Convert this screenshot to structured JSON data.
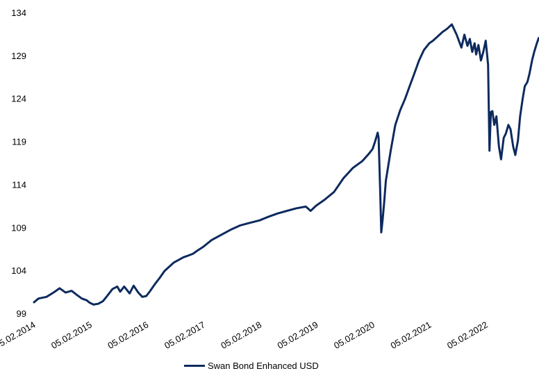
{
  "chart_data": {
    "type": "line",
    "title": "",
    "xlabel": "",
    "ylabel": "",
    "ylim": [
      99,
      134
    ],
    "y_ticks": [
      99,
      104,
      109,
      114,
      119,
      124,
      129,
      134
    ],
    "y_tick_labels": [
      "99",
      "104",
      "109",
      "114",
      "119",
      "124",
      "129",
      "134"
    ],
    "x_tick_labels": [
      "05.02.2014",
      "05.02.2015",
      "05.02.2016",
      "05.02.2017",
      "05.02.2018",
      "05.02.2019",
      "05.02.2020",
      "05.02.2021",
      "05.02.2022"
    ],
    "xlim": [
      "2014-02-05",
      "2023-01-15"
    ],
    "grid": false,
    "legend_position": "bottom",
    "colors": {
      "series": "#0d2a5e"
    },
    "series": [
      {
        "name": "Swan Bond Enhanced USD",
        "x": [
          "2014-02-05",
          "2014-03-10",
          "2014-05-01",
          "2014-06-15",
          "2014-07-25",
          "2014-09-01",
          "2014-10-10",
          "2014-11-15",
          "2014-12-15",
          "2015-01-15",
          "2015-02-05",
          "2015-03-01",
          "2015-04-01",
          "2015-05-01",
          "2015-06-01",
          "2015-07-01",
          "2015-08-01",
          "2015-08-20",
          "2015-09-15",
          "2015-10-20",
          "2015-11-15",
          "2015-12-15",
          "2016-01-10",
          "2016-02-05",
          "2016-03-01",
          "2016-04-01",
          "2016-05-01",
          "2016-06-01",
          "2016-07-01",
          "2016-08-01",
          "2016-09-01",
          "2016-10-01",
          "2016-11-01",
          "2016-12-01",
          "2017-01-01",
          "2017-02-05",
          "2017-04-01",
          "2017-06-01",
          "2017-08-01",
          "2017-10-01",
          "2017-12-01",
          "2018-02-05",
          "2018-04-01",
          "2018-06-01",
          "2018-08-01",
          "2018-10-01",
          "2018-12-01",
          "2019-01-01",
          "2019-02-05",
          "2019-04-01",
          "2019-06-01",
          "2019-08-01",
          "2019-10-01",
          "2019-12-01",
          "2020-01-10",
          "2020-02-05",
          "2020-02-20",
          "2020-03-01",
          "2020-03-09",
          "2020-03-15",
          "2020-03-19",
          "2020-03-25",
          "2020-04-01",
          "2020-04-10",
          "2020-04-20",
          "2020-05-01",
          "2020-06-01",
          "2020-07-01",
          "2020-08-01",
          "2020-09-01",
          "2020-10-01",
          "2020-11-01",
          "2020-12-01",
          "2021-01-01",
          "2021-02-05",
          "2021-03-01",
          "2021-04-01",
          "2021-05-01",
          "2021-06-01",
          "2021-07-01",
          "2021-08-01",
          "2021-09-01",
          "2021-09-20",
          "2021-10-10",
          "2021-10-25",
          "2021-11-10",
          "2021-11-25",
          "2021-12-05",
          "2021-12-20",
          "2022-01-05",
          "2022-01-20",
          "2022-02-05",
          "2022-02-20",
          "2022-03-01",
          "2022-03-10",
          "2022-03-20",
          "2022-04-01",
          "2022-04-15",
          "2022-05-01",
          "2022-05-15",
          "2022-06-01",
          "2022-06-15",
          "2022-07-01",
          "2022-07-15",
          "2022-08-01",
          "2022-08-15",
          "2022-09-01",
          "2022-09-15",
          "2022-10-01",
          "2022-10-15",
          "2022-11-01",
          "2022-11-15",
          "2022-12-01",
          "2022-12-15",
          "2023-01-01",
          "2023-01-15"
        ],
        "values": [
          100.3,
          100.8,
          101.0,
          101.5,
          102.0,
          101.5,
          101.7,
          101.2,
          100.8,
          100.6,
          100.3,
          100.1,
          100.2,
          100.5,
          101.2,
          101.9,
          102.2,
          101.6,
          102.2,
          101.4,
          102.3,
          101.5,
          101.0,
          101.1,
          101.7,
          102.5,
          103.2,
          104.0,
          104.5,
          105.0,
          105.3,
          105.6,
          105.8,
          106.0,
          106.4,
          106.8,
          107.6,
          108.2,
          108.8,
          109.3,
          109.6,
          109.9,
          110.3,
          110.7,
          111.0,
          111.3,
          111.5,
          111.0,
          111.6,
          112.3,
          113.2,
          114.8,
          116.0,
          116.8,
          117.6,
          118.2,
          119.0,
          119.6,
          120.1,
          119.5,
          117.0,
          113.5,
          108.5,
          110.0,
          112.0,
          114.5,
          118.0,
          121.0,
          122.7,
          124.0,
          125.5,
          127.0,
          128.5,
          129.7,
          130.5,
          130.8,
          131.3,
          131.8,
          132.2,
          132.7,
          131.5,
          130.0,
          131.5,
          130.2,
          131.0,
          129.5,
          130.5,
          129.2,
          130.3,
          128.5,
          129.5,
          130.8,
          128.0,
          118.0,
          122.5,
          122.6,
          121.0,
          122.0,
          118.5,
          117.0,
          119.5,
          120.0,
          121.0,
          120.5,
          118.5,
          117.5,
          119.2,
          122.0,
          124.0,
          125.5,
          126.0,
          127.0,
          128.5,
          129.5,
          130.5,
          131.2
        ]
      }
    ]
  }
}
